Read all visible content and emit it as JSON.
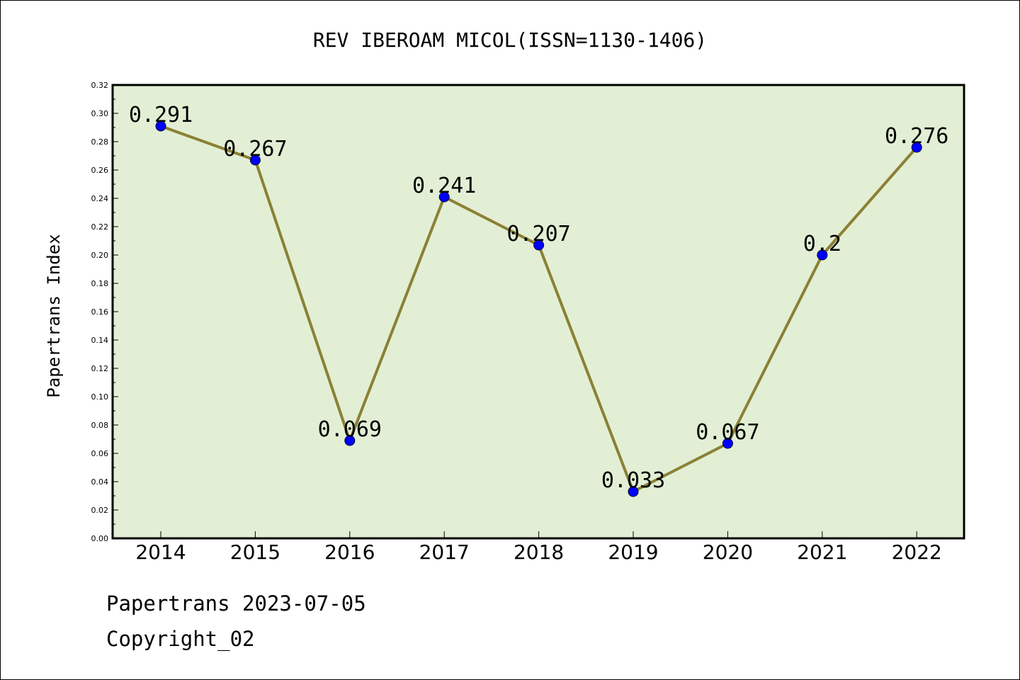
{
  "chart_data": {
    "type": "line",
    "title": "REV IBEROAM MICOL(ISSN=1130-1406)",
    "xlabel": "",
    "ylabel": "Papertrans Index",
    "categories": [
      "2014",
      "2015",
      "2016",
      "2017",
      "2018",
      "2019",
      "2020",
      "2021",
      "2022"
    ],
    "series": [
      {
        "values": [
          0.291,
          0.267,
          0.069,
          0.241,
          0.207,
          0.033,
          0.067,
          0.2,
          0.276
        ],
        "data_labels": [
          "0.291",
          "0.267",
          "0.069",
          "0.241",
          "0.207",
          "0.033",
          "0.067",
          "0.2",
          "0.276"
        ]
      }
    ],
    "ylim": [
      0,
      0.32
    ],
    "yticks": [
      "0.00",
      "0.02",
      "0.04",
      "0.06",
      "0.08",
      "0.10",
      "0.12",
      "0.14",
      "0.16",
      "0.18",
      "0.20",
      "0.22",
      "0.24",
      "0.26",
      "0.28",
      "0.30",
      "0.32"
    ],
    "grid": false,
    "colors": {
      "plot_background": "#e2efd5",
      "line": "#8b8035",
      "marker": "#0000ff"
    }
  },
  "footer": {
    "line1": "Papertrans 2023-07-05",
    "line2": "Copyright_02"
  }
}
